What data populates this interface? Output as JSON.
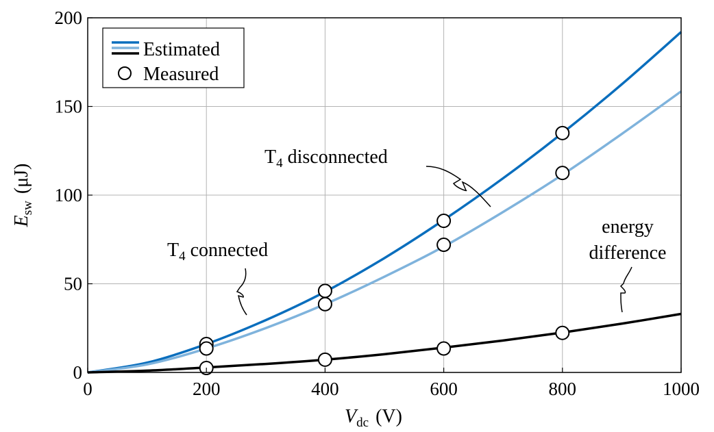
{
  "chart_data": {
    "type": "line",
    "xlabel": {
      "main": "V",
      "sub": "dc",
      "unit": "(V)"
    },
    "ylabel": {
      "main": "E",
      "sub": "sw",
      "unit": "(μJ)"
    },
    "xlim": [
      0,
      1000
    ],
    "ylim": [
      0,
      200
    ],
    "xticks": [
      "0",
      "200",
      "400",
      "600",
      "800",
      "1000"
    ],
    "yticks": [
      "0",
      "50",
      "100",
      "150",
      "200"
    ],
    "grid": true,
    "legend": {
      "placement": "top-left",
      "estimated_label": "Estimated",
      "measured_label": "Measured"
    },
    "series": [
      {
        "key": "disconnected",
        "color": "#0a6ebd",
        "estimated": {
          "x": [
            0,
            100,
            200,
            300,
            400,
            500,
            600,
            700,
            800,
            900,
            1000
          ],
          "y": [
            0,
            5.5,
            16,
            29.5,
            45.5,
            64.5,
            86,
            109.5,
            135,
            162.5,
            192
          ]
        },
        "measured": {
          "x": [
            200,
            400,
            600,
            800
          ],
          "y": [
            16,
            46,
            85.5,
            135
          ]
        }
      },
      {
        "key": "connected",
        "color": "#7fb3dc",
        "estimated": {
          "x": [
            0,
            100,
            200,
            300,
            400,
            500,
            600,
            700,
            800,
            900,
            1000
          ],
          "y": [
            0,
            4.5,
            13.5,
            25,
            38.5,
            54,
            71,
            90.5,
            111.5,
            134.5,
            158.5
          ]
        },
        "measured": {
          "x": [
            200,
            400,
            600,
            800
          ],
          "y": [
            13.5,
            38.5,
            72,
            112.5
          ]
        }
      },
      {
        "key": "difference",
        "color": "#000000",
        "estimated": {
          "x": [
            0,
            100,
            200,
            300,
            400,
            500,
            600,
            700,
            800,
            900,
            1000
          ],
          "y": [
            0,
            1,
            2.8,
            4.8,
            7.2,
            10.3,
            14,
            18,
            22.5,
            27.5,
            33
          ]
        },
        "measured": {
          "x": [
            200,
            400,
            600,
            800
          ],
          "y": [
            2.5,
            7.2,
            13.5,
            22.3
          ]
        }
      }
    ],
    "annotations": {
      "disconnected": {
        "main": "T",
        "sub": "4",
        "rest": " disconnected"
      },
      "connected": {
        "main": "T",
        "sub": "4",
        "rest": " connected"
      },
      "difference": [
        "energy",
        "difference"
      ]
    }
  }
}
